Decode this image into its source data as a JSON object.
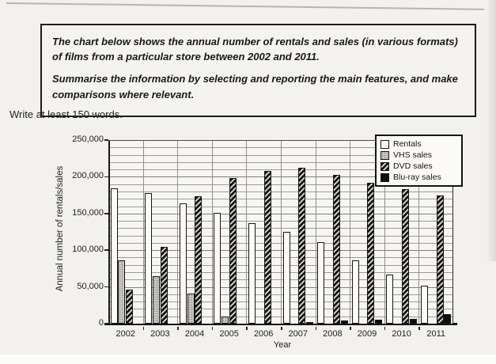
{
  "page": {
    "instruction": "Write at least 150 words."
  },
  "prompt_box": {
    "paragraph1": "The chart below shows the annual number of rentals and sales (in various formats) of films from a particular store between 2002 and 2011.",
    "paragraph2": "Summarise the information by selecting and reporting the main features, and make comparisons where relevant."
  },
  "chart_data": {
    "type": "bar",
    "title": "",
    "xlabel": "Year",
    "ylabel": "Annual number of rentals/sales",
    "ylim": [
      0,
      250000
    ],
    "ytick_step": 50000,
    "minor_grid_step": 10000,
    "ytick_labels": [
      "0",
      "50,000",
      "100,000",
      "150,000",
      "200,000",
      "250,000"
    ],
    "grid": true,
    "legend_position": "top-right",
    "categories": [
      "2002",
      "2003",
      "2004",
      "2005",
      "2006",
      "2007",
      "2008",
      "2009",
      "2010",
      "2011"
    ],
    "series": [
      {
        "name": "Rentals",
        "style": "white",
        "values": [
          184000,
          178000,
          164000,
          151000,
          137000,
          125000,
          111000,
          86000,
          67000,
          52000
        ]
      },
      {
        "name": "VHS sales",
        "style": "gray-stipple",
        "values": [
          86000,
          65000,
          41000,
          10000,
          0,
          0,
          0,
          0,
          0,
          0
        ]
      },
      {
        "name": "DVD sales",
        "style": "diagonal-hatch",
        "values": [
          46000,
          104000,
          173000,
          198000,
          208000,
          212000,
          203000,
          192000,
          183000,
          175000
        ]
      },
      {
        "name": "Blu-ray sales",
        "style": "solid-black",
        "values": [
          0,
          0,
          0,
          0,
          0,
          2000,
          4000,
          5000,
          7000,
          13000
        ]
      }
    ]
  },
  "colors": {
    "paper": "#f2f1ed",
    "ink": "#1c1c1c",
    "grid_line": "#8f8f8c",
    "bar_outline": "#161616",
    "vhs_gray": "#c6c5c1",
    "dvd_dark": "#171717",
    "blu_ray_black": "#0e0e0e",
    "rentals_white": "#fcfbf8"
  }
}
